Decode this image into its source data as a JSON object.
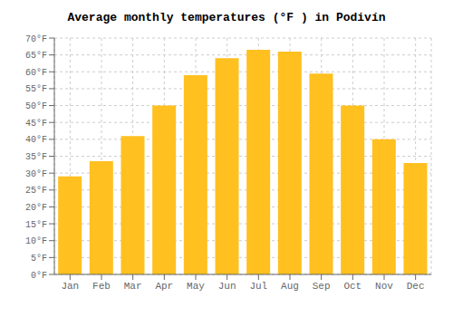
{
  "chart_data": {
    "type": "bar",
    "title": "Average monthly temperatures (°F ) in Podivín",
    "categories": [
      "Jan",
      "Feb",
      "Mar",
      "Apr",
      "May",
      "Jun",
      "Jul",
      "Aug",
      "Sep",
      "Oct",
      "Nov",
      "Dec"
    ],
    "values": [
      29,
      33.5,
      41,
      50,
      59,
      64,
      66.5,
      66,
      59.5,
      50,
      40,
      33
    ],
    "color": "#FFC020",
    "ylim": [
      0,
      70
    ],
    "yticks": [
      {
        "value": 0,
        "label": "0°F"
      },
      {
        "value": 5,
        "label": "5°F"
      },
      {
        "value": 10,
        "label": "10°F"
      },
      {
        "value": 15,
        "label": "15°F"
      },
      {
        "value": 20,
        "label": "20°F"
      },
      {
        "value": 25,
        "label": "25°F"
      },
      {
        "value": 30,
        "label": "30°F"
      },
      {
        "value": 35,
        "label": "35°F"
      },
      {
        "value": 40,
        "label": "40°F"
      },
      {
        "value": 45,
        "label": "45°F"
      },
      {
        "value": 50,
        "label": "50°F"
      },
      {
        "value": 55,
        "label": "55°F"
      },
      {
        "value": 60,
        "label": "60°F"
      },
      {
        "value": 65,
        "label": "65°F"
      },
      {
        "value": 70,
        "label": "70°F"
      }
    ],
    "grid": true
  }
}
